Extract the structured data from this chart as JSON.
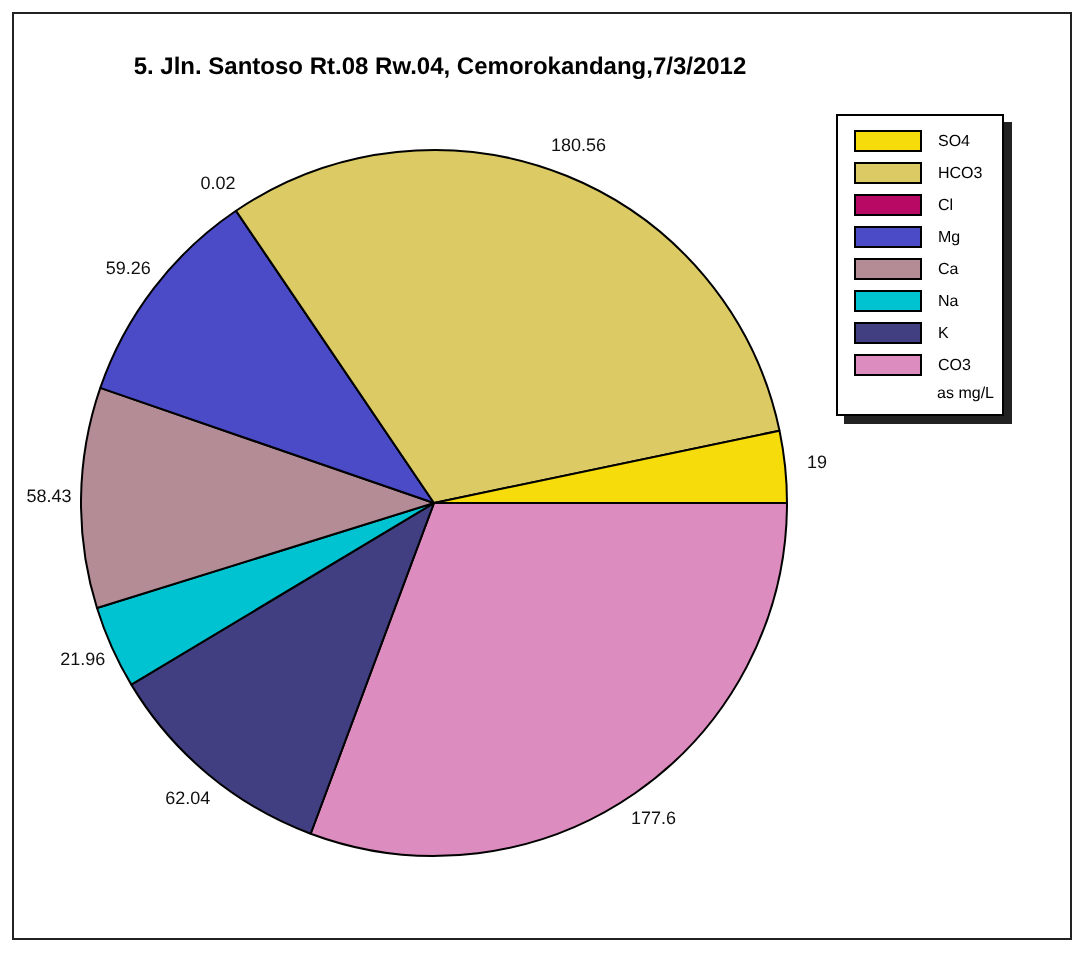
{
  "chart_data": {
    "type": "pie",
    "title": "5. Jln. Santoso Rt.08 Rw.04, Cemorokandang,7/3/2012",
    "categories": [
      "SO4",
      "HCO3",
      "Cl",
      "Mg",
      "Ca",
      "Na",
      "K",
      "CO3"
    ],
    "values": [
      19,
      180.56,
      0.02,
      59.26,
      58.43,
      21.96,
      62.04,
      177.6
    ],
    "colors": [
      "#f5dc0a",
      "#dccb64",
      "#b80a64",
      "#4b4bc8",
      "#b48c96",
      "#00c3d2",
      "#413f82",
      "#dc8cbe"
    ],
    "data_labels": true,
    "legend": "top right",
    "annotations": [
      "as mg/L"
    ]
  }
}
